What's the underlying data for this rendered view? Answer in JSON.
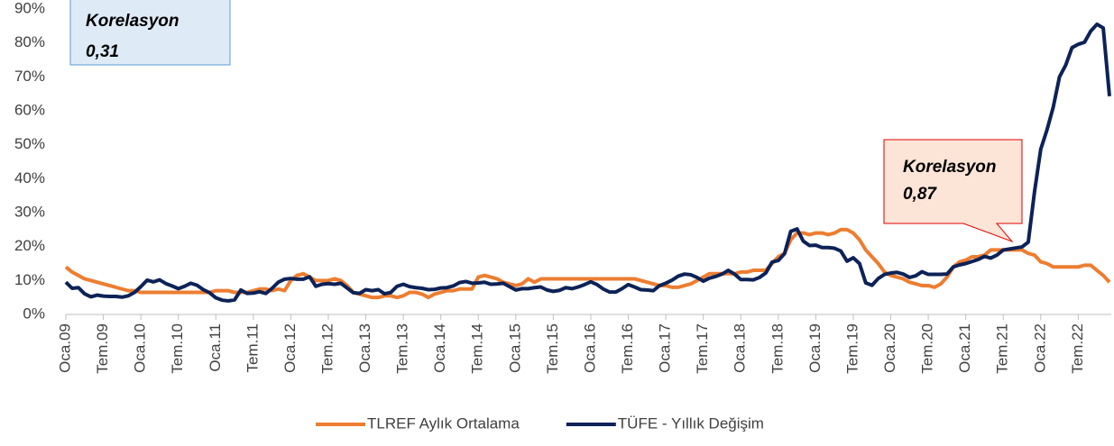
{
  "chart_data": {
    "type": "line",
    "annotations": [
      {
        "title": "Korelasyon",
        "value": "0,31"
      },
      {
        "title": "Korelasyon",
        "value": "0,87"
      }
    ],
    "categories": [
      "Oca.09",
      null,
      null,
      null,
      null,
      null,
      "Tem.09",
      null,
      null,
      null,
      null,
      null,
      "Oca.10",
      null,
      null,
      null,
      null,
      null,
      "Tem.10",
      null,
      null,
      null,
      null,
      null,
      "Oca.11",
      null,
      null,
      null,
      null,
      null,
      "Tem.11",
      null,
      null,
      null,
      null,
      null,
      "Oca.12",
      null,
      null,
      null,
      null,
      null,
      "Tem.12",
      null,
      null,
      null,
      null,
      null,
      "Oca.13",
      null,
      null,
      null,
      null,
      null,
      "Tem.13",
      null,
      null,
      null,
      null,
      null,
      "Oca.14",
      null,
      null,
      null,
      null,
      null,
      "Tem.14",
      null,
      null,
      null,
      null,
      null,
      "Oca.15",
      null,
      null,
      null,
      null,
      null,
      "Tem.15",
      null,
      null,
      null,
      null,
      null,
      "Oca.16",
      null,
      null,
      null,
      null,
      null,
      "Tem.16",
      null,
      null,
      null,
      null,
      null,
      "Oca.17",
      null,
      null,
      null,
      null,
      null,
      "Tem.17",
      null,
      null,
      null,
      null,
      null,
      "Oca.18",
      null,
      null,
      null,
      null,
      null,
      "Tem.18",
      null,
      null,
      null,
      null,
      null,
      "Oca.19",
      null,
      null,
      null,
      null,
      null,
      "Tem.19",
      null,
      null,
      null,
      null,
      null,
      "Oca.20",
      null,
      null,
      null,
      null,
      null,
      "Tem.20",
      null,
      null,
      null,
      null,
      null,
      "Oca.21",
      null,
      null,
      null,
      null,
      null,
      "Tem.21",
      null,
      null,
      null,
      null,
      null,
      "Oca.22",
      null,
      null,
      null,
      null,
      null,
      "Tem.22",
      null,
      null,
      null,
      null,
      null
    ],
    "series": [
      {
        "name": "TLREF Aylık Ortalama",
        "color": "#ed7d31",
        "values": [
          14,
          12.5,
          11.5,
          10.5,
          10,
          9.5,
          9,
          8.5,
          8,
          7.5,
          7,
          7,
          6.5,
          6.5,
          6.5,
          6.5,
          6.5,
          6.5,
          6.5,
          6.5,
          6.5,
          6.5,
          6.5,
          6.5,
          7,
          7,
          7,
          6.5,
          6.5,
          6.5,
          7,
          7.5,
          7.5,
          7,
          7.5,
          7,
          10,
          11.5,
          12,
          11,
          10,
          10,
          10,
          10.5,
          10,
          8.5,
          6.5,
          6,
          5.5,
          5,
          5,
          5.5,
          5.5,
          5,
          5.5,
          6.5,
          6.5,
          6,
          5,
          6,
          6.5,
          7,
          7,
          7.5,
          7.5,
          7.5,
          11,
          11.5,
          11,
          10.5,
          9.5,
          9,
          8.5,
          9,
          10.5,
          9.5,
          10.5,
          10.5,
          10.5,
          10.5,
          10.5,
          10.5,
          10.5,
          10.5,
          10.5,
          10.5,
          10.5,
          10.5,
          10.5,
          10.5,
          10.5,
          10.5,
          10,
          9.5,
          9,
          8.5,
          8.5,
          8,
          8,
          8.5,
          9,
          10,
          11,
          12,
          12,
          12,
          12,
          12,
          12.5,
          12.5,
          13,
          13,
          13,
          15,
          17,
          18,
          22,
          24,
          24,
          23.5,
          24,
          24,
          23.5,
          24,
          25,
          25,
          24,
          22,
          19,
          17,
          15,
          12.5,
          11.5,
          11,
          10.5,
          9.5,
          9,
          8.5,
          8.5,
          8,
          9,
          11,
          14,
          15.5,
          16,
          17,
          17,
          17.5,
          19,
          19,
          19,
          19,
          19,
          19,
          18,
          17.5,
          15.5,
          15,
          14,
          14,
          14,
          14,
          14,
          14.5,
          14.5,
          13,
          11.5,
          9.5
        ]
      },
      {
        "name": "TÜFE - Yıllık Değişim",
        "color": "#0d2257",
        "values": [
          9.5,
          7.7,
          7.9,
          6.1,
          5.2,
          5.7,
          5.4,
          5.3,
          5.3,
          5.1,
          5.5,
          6.5,
          8.2,
          10.1,
          9.6,
          10.2,
          9.1,
          8.4,
          7.6,
          8.3,
          9.2,
          8.6,
          7.3,
          6.4,
          4.9,
          4.2,
          4.0,
          4.3,
          7.2,
          6.2,
          6.3,
          6.7,
          6.2,
          7.7,
          9.5,
          10.4,
          10.6,
          10.4,
          10.4,
          11.1,
          8.3,
          8.9,
          9.1,
          8.9,
          9.2,
          7.8,
          6.4,
          6.2,
          7.3,
          7.0,
          7.3,
          6.1,
          6.5,
          8.3,
          8.9,
          8.2,
          7.9,
          7.7,
          7.3,
          7.4,
          7.8,
          7.9,
          8.4,
          9.4,
          9.7,
          9.2,
          9.3,
          9.5,
          8.9,
          9.0,
          9.2,
          8.2,
          7.2,
          7.6,
          7.6,
          7.9,
          8.1,
          7.2,
          6.8,
          7.1,
          7.9,
          7.6,
          8.1,
          8.8,
          9.6,
          8.8,
          7.5,
          6.6,
          6.6,
          7.6,
          8.8,
          8.1,
          7.3,
          7.2,
          7.0,
          8.5,
          9.2,
          10.1,
          11.3,
          11.9,
          11.7,
          10.9,
          9.8,
          10.7,
          11.2,
          11.9,
          13.0,
          11.9,
          10.3,
          10.3,
          10.2,
          10.9,
          12.2,
          15.4,
          15.9,
          17.9,
          24.5,
          25.2,
          21.6,
          20.3,
          20.4,
          19.7,
          19.7,
          19.5,
          18.7,
          15.7,
          16.7,
          15.0,
          9.3,
          8.6,
          10.6,
          11.8,
          12.2,
          12.4,
          11.9,
          10.9,
          11.4,
          12.6,
          11.8,
          11.8,
          11.8,
          11.9,
          14.0,
          14.6,
          15.0,
          15.6,
          16.2,
          17.1,
          16.6,
          17.5,
          19.0,
          19.3,
          19.6,
          19.9,
          21.3,
          36.1,
          48.7,
          54.4,
          61.1,
          70.0,
          73.5,
          78.6,
          79.6,
          80.2,
          83.5,
          85.5,
          84.4,
          64.3
        ]
      }
    ],
    "ylim": [
      0,
      90
    ],
    "yticks": [
      {
        "value": 0,
        "label": "0%"
      },
      {
        "value": 10,
        "label": "10%"
      },
      {
        "value": 20,
        "label": "20%"
      },
      {
        "value": 30,
        "label": "30%"
      },
      {
        "value": 40,
        "label": "40%"
      },
      {
        "value": 50,
        "label": "50%"
      },
      {
        "value": 60,
        "label": "60%"
      },
      {
        "value": 70,
        "label": "70%"
      },
      {
        "value": 80,
        "label": "80%"
      },
      {
        "value": 90,
        "label": "90%"
      }
    ],
    "legend": "bottom"
  }
}
